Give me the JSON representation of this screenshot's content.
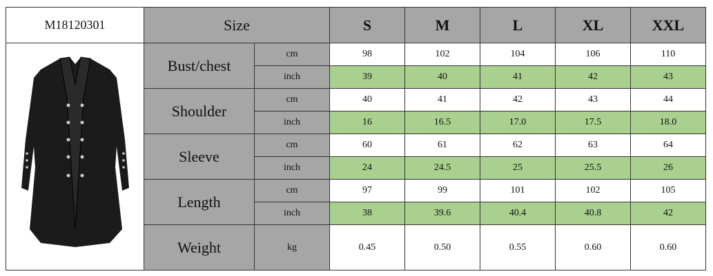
{
  "header": {
    "code": "M18120301",
    "size_label": "Size",
    "sizes": [
      "S",
      "M",
      "L",
      "XL",
      "XXL"
    ]
  },
  "rows": [
    {
      "name": "Bust/chest",
      "units": [
        {
          "unit": "cm",
          "values": [
            "98",
            "102",
            "104",
            "106",
            "110"
          ]
        },
        {
          "unit": "inch",
          "values": [
            "39",
            "40",
            "41",
            "42",
            "43"
          ]
        }
      ]
    },
    {
      "name": "Shoulder",
      "units": [
        {
          "unit": "cm",
          "values": [
            "40",
            "41",
            "42",
            "43",
            "44"
          ]
        },
        {
          "unit": "inch",
          "values": [
            "16",
            "16.5",
            "17.0",
            "17.5",
            "18.0"
          ]
        }
      ]
    },
    {
      "name": "Sleeve",
      "units": [
        {
          "unit": "cm",
          "values": [
            "60",
            "61",
            "62",
            "63",
            "64"
          ]
        },
        {
          "unit": "inch",
          "values": [
            "24",
            "24.5",
            "25",
            "25.5",
            "26"
          ]
        }
      ]
    },
    {
      "name": "Length",
      "units": [
        {
          "unit": "cm",
          "values": [
            "97",
            "99",
            "101",
            "102",
            "105"
          ]
        },
        {
          "unit": "inch",
          "values": [
            "38",
            "39.6",
            "40.4",
            "40.8",
            "42"
          ]
        }
      ]
    },
    {
      "name": "Weight",
      "units": [
        {
          "unit": "kg",
          "values": [
            "0.45",
            "0.50",
            "0.55",
            "0.60",
            "0.60"
          ]
        }
      ]
    }
  ]
}
